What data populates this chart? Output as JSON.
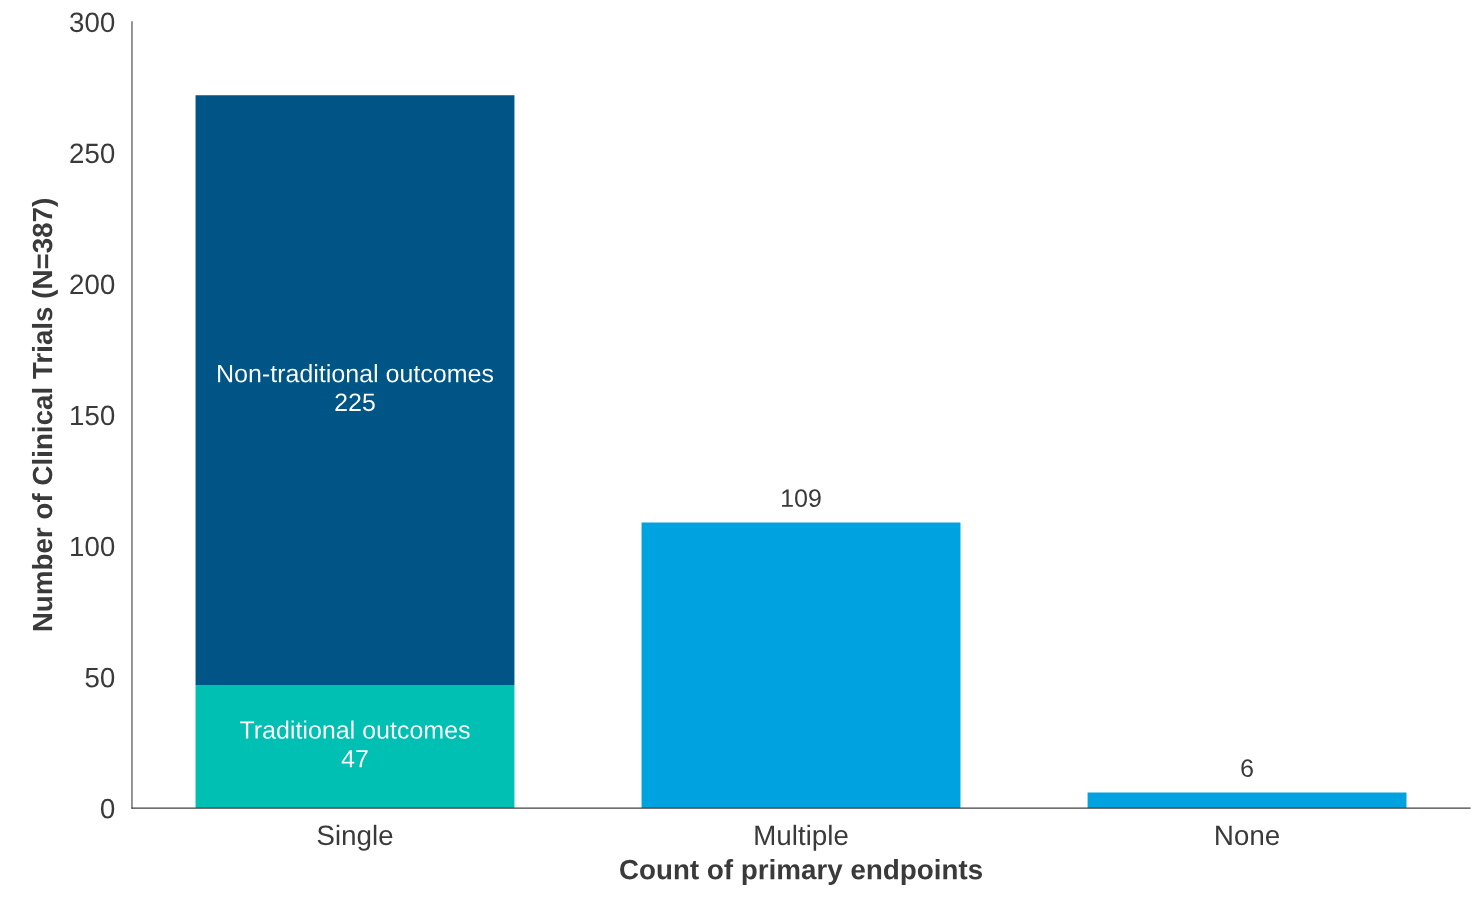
{
  "chart_data": {
    "type": "bar",
    "stacked": true,
    "xlabel": "Count of primary endpoints",
    "ylabel": "Number of Clinical Trials (N=387)",
    "categories": [
      "Single",
      "Multiple",
      "None"
    ],
    "series": [
      {
        "name": "Traditional outcomes",
        "color": "#00bfb3",
        "values": [
          47,
          null,
          null
        ]
      },
      {
        "name": "Non-traditional outcomes",
        "color": "#005587",
        "values": [
          225,
          null,
          null
        ]
      },
      {
        "color": "#00a3e0",
        "values": [
          null,
          109,
          6
        ]
      }
    ],
    "ylim": [
      0,
      300
    ],
    "yticks": [
      0,
      50,
      100,
      150,
      200,
      250,
      300
    ],
    "data_labels": true,
    "grid": false
  }
}
